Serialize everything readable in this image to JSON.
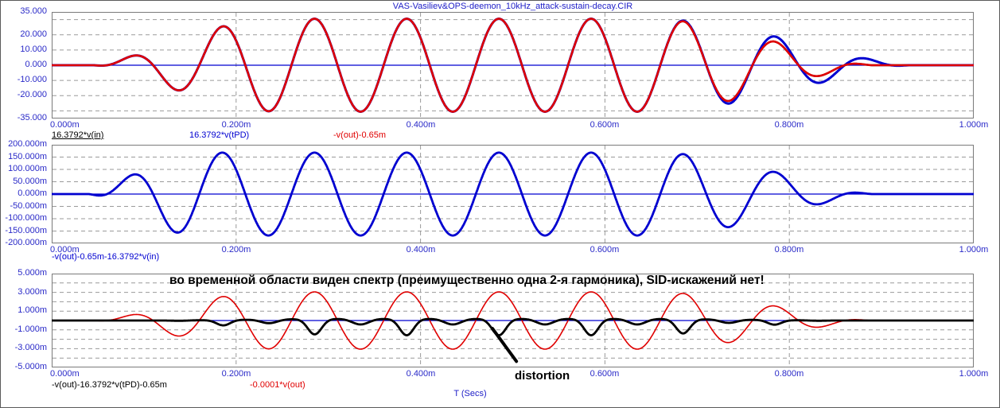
{
  "window": {
    "title": "VAS-Vasiliev&OPS-deemon_10kHz_attack-sustain-decay.CIR"
  },
  "x_axis_title": "T (Secs)",
  "annotation": "во временной области виден спектр (преимущественно одна 2-я гармоника), SID-искажений нет!",
  "distortion_label": "distortion",
  "colors": {
    "axis_text": "#2a2ac8",
    "grid": "#9a9a9a",
    "plot_border": "#7a7a7a",
    "trace_red": "#e00000",
    "trace_blue": "#0000d0",
    "trace_black": "#000000",
    "background": "#ffffff"
  },
  "chart_data": [
    {
      "type": "line",
      "title": "VAS-Vasiliev&OPS-deemon_10kHz_attack-sustain-decay.CIR",
      "x_range_ms": [
        0,
        1
      ],
      "y_range": [
        -35,
        35
      ],
      "grid": "dashed",
      "carrier": {
        "freq_kHz": 10,
        "period_ms": 0.1,
        "zero_phase_ms": 0.06
      },
      "x_ticks": [
        {
          "v": 0,
          "label": "0.000m"
        },
        {
          "v": 0.2,
          "label": "0.200m"
        },
        {
          "v": 0.4,
          "label": "0.400m"
        },
        {
          "v": 0.6,
          "label": "0.600m"
        },
        {
          "v": 0.8,
          "label": "0.800m"
        },
        {
          "v": 1.0,
          "label": "1.000m"
        }
      ],
      "y_ticks": [
        {
          "v": 35,
          "label": "35.000"
        },
        {
          "v": 20,
          "label": "20.000"
        },
        {
          "v": 10,
          "label": "10.000"
        },
        {
          "v": 0,
          "label": "0.000"
        },
        {
          "v": -10,
          "label": "-10.000"
        },
        {
          "v": -20,
          "label": "-20.000"
        },
        {
          "v": -35,
          "label": "-35.000"
        }
      ],
      "h_grid": [
        30,
        20,
        10,
        0,
        -10,
        -20,
        -30
      ],
      "v_grid": [
        0.2,
        0.4,
        0.6,
        0.8
      ],
      "series": [
        {
          "name": "zero-baseline",
          "color": "#0000d0",
          "width": 1.2,
          "gen": {
            "kind": "flat",
            "value": 0
          }
        },
        {
          "name": "16.3792*v(in)",
          "color": "#000000",
          "width": 2.4,
          "gen": {
            "kind": "burst",
            "amp": 30.5,
            "attack": [
              0.045,
              0.25
            ],
            "decay": [
              0.64,
              0.89
            ],
            "env_pow": 0.7
          }
        },
        {
          "name": "16.3792*v(tPD)",
          "color": "#0000d0",
          "width": 3.0,
          "gen": {
            "kind": "burst",
            "amp": 30.5,
            "attack": [
              0.045,
              0.25
            ],
            "decay": [
              0.64,
              0.93
            ],
            "env_pow": 0.7
          }
        },
        {
          "name": "-v(out)-0.65m",
          "color": "#e00000",
          "width": 2.6,
          "gen": {
            "kind": "burst",
            "amp": 30.5,
            "attack": [
              0.045,
              0.25
            ],
            "decay": [
              0.64,
              0.89
            ],
            "env_pow": 0.7
          }
        }
      ],
      "legend": [
        {
          "label": "16.3792*v(in)",
          "color": "#000000",
          "underline": true,
          "x": 0
        },
        {
          "label": "16.3792*v(tPD)",
          "color": "#0000d0",
          "underline": false,
          "x": 173
        },
        {
          "label": "-v(out)-0.65m",
          "color": "#e00000",
          "underline": false,
          "x": 354
        }
      ]
    },
    {
      "type": "line",
      "x_range_ms": [
        0,
        1
      ],
      "y_range": [
        -200,
        200
      ],
      "grid": "dashed",
      "carrier": {
        "freq_kHz": 10,
        "period_ms": 0.1,
        "zero_phase_ms": 0.06
      },
      "x_ticks": [
        {
          "v": 0,
          "label": "0.000m"
        },
        {
          "v": 0.2,
          "label": "0.200m"
        },
        {
          "v": 0.4,
          "label": "0.400m"
        },
        {
          "v": 0.6,
          "label": "0.600m"
        },
        {
          "v": 0.8,
          "label": "0.800m"
        },
        {
          "v": 1.0,
          "label": "1.000m"
        }
      ],
      "y_ticks": [
        {
          "v": 200,
          "label": "200.000m"
        },
        {
          "v": 150,
          "label": "150.000m"
        },
        {
          "v": 100,
          "label": "100.000m"
        },
        {
          "v": 50,
          "label": "50.000m"
        },
        {
          "v": 0,
          "label": "0.000m"
        },
        {
          "v": -50,
          "label": "-50.000m"
        },
        {
          "v": -100,
          "label": "-100.000m"
        },
        {
          "v": -150,
          "label": "-150.000m"
        },
        {
          "v": -200,
          "label": "-200.000m"
        }
      ],
      "h_grid": [
        150,
        100,
        50,
        0,
        -50,
        -100,
        -150
      ],
      "v_grid": [
        0.2,
        0.4,
        0.6,
        0.8
      ],
      "series": [
        {
          "name": "zero-baseline",
          "color": "#0000d0",
          "width": 1.2,
          "gen": {
            "kind": "flat",
            "value": 0
          }
        },
        {
          "name": "-v(out)-0.65m-16.3792*v(in)",
          "color": "#0000d0",
          "width": 2.8,
          "gen": {
            "kind": "burst",
            "amp": 168,
            "attack": [
              0.04,
              0.16
            ],
            "decay": [
              0.65,
              0.89
            ],
            "env_pow": 0.7
          }
        }
      ],
      "legend": [
        {
          "label": "-v(out)-0.65m-16.3792*v(in)",
          "color": "#0000d0",
          "underline": false,
          "x": 0
        }
      ]
    },
    {
      "type": "line",
      "x_range_ms": [
        0,
        1
      ],
      "y_range": [
        -5,
        5
      ],
      "grid": "dashed",
      "carrier": {
        "freq_kHz": 10,
        "period_ms": 0.1,
        "zero_phase_ms": 0.06
      },
      "x_ticks": [
        {
          "v": 0,
          "label": "0.000m"
        },
        {
          "v": 0.2,
          "label": "0.200m"
        },
        {
          "v": 0.4,
          "label": "0.400m"
        },
        {
          "v": 0.6,
          "label": "0.600m"
        },
        {
          "v": 0.8,
          "label": "0.800m"
        },
        {
          "v": 1.0,
          "label": "1.000m"
        }
      ],
      "y_ticks": [
        {
          "v": 5,
          "label": "5.000m"
        },
        {
          "v": 3,
          "label": "3.000m"
        },
        {
          "v": 1,
          "label": "1.000m"
        },
        {
          "v": -1,
          "label": "-1.000m"
        },
        {
          "v": -3,
          "label": "-3.000m"
        },
        {
          "v": -5,
          "label": "-5.000m"
        }
      ],
      "h_grid": [
        4,
        3,
        2,
        1,
        0,
        -1,
        -2,
        -3,
        -4
      ],
      "v_grid": [
        0.2,
        0.4,
        0.6,
        0.8
      ],
      "series": [
        {
          "name": "zero-baseline",
          "color": "#0000d0",
          "width": 1.2,
          "gen": {
            "kind": "flat",
            "value": 0
          }
        },
        {
          "name": "-0.0001*v(out)",
          "color": "#e00000",
          "width": 1.6,
          "gen": {
            "kind": "burst",
            "amp": 3.05,
            "attack": [
              0.045,
              0.25
            ],
            "decay": [
              0.64,
              0.89
            ],
            "env_pow": 0.7
          }
        },
        {
          "name": "-v(out)-16.3792*v(tPD)-0.65m",
          "color": "#000000",
          "width": 2.8,
          "gen": {
            "kind": "distortion",
            "base": 0.18,
            "deep_amp": 1.75,
            "deep_center": 0.25,
            "deep_sigma": 0.075,
            "shallow_amp": 0.6,
            "shallow_center": 0.75,
            "shallow_sigma": 0.09,
            "attack": [
              0.1,
              0.32
            ],
            "decay": [
              0.63,
              0.87
            ]
          }
        }
      ],
      "legend": [
        {
          "label": "-v(out)-16.3792*v(tPD)-0.65m",
          "color": "#000000",
          "underline": false,
          "x": 0
        },
        {
          "label": "-0.0001*v(out)",
          "color": "#e00000",
          "underline": false,
          "x": 249
        }
      ],
      "arrow": {
        "x1_ms": 0.478,
        "y1": -0.85,
        "x2_ms": 0.504,
        "y2": -4.35
      }
    }
  ]
}
